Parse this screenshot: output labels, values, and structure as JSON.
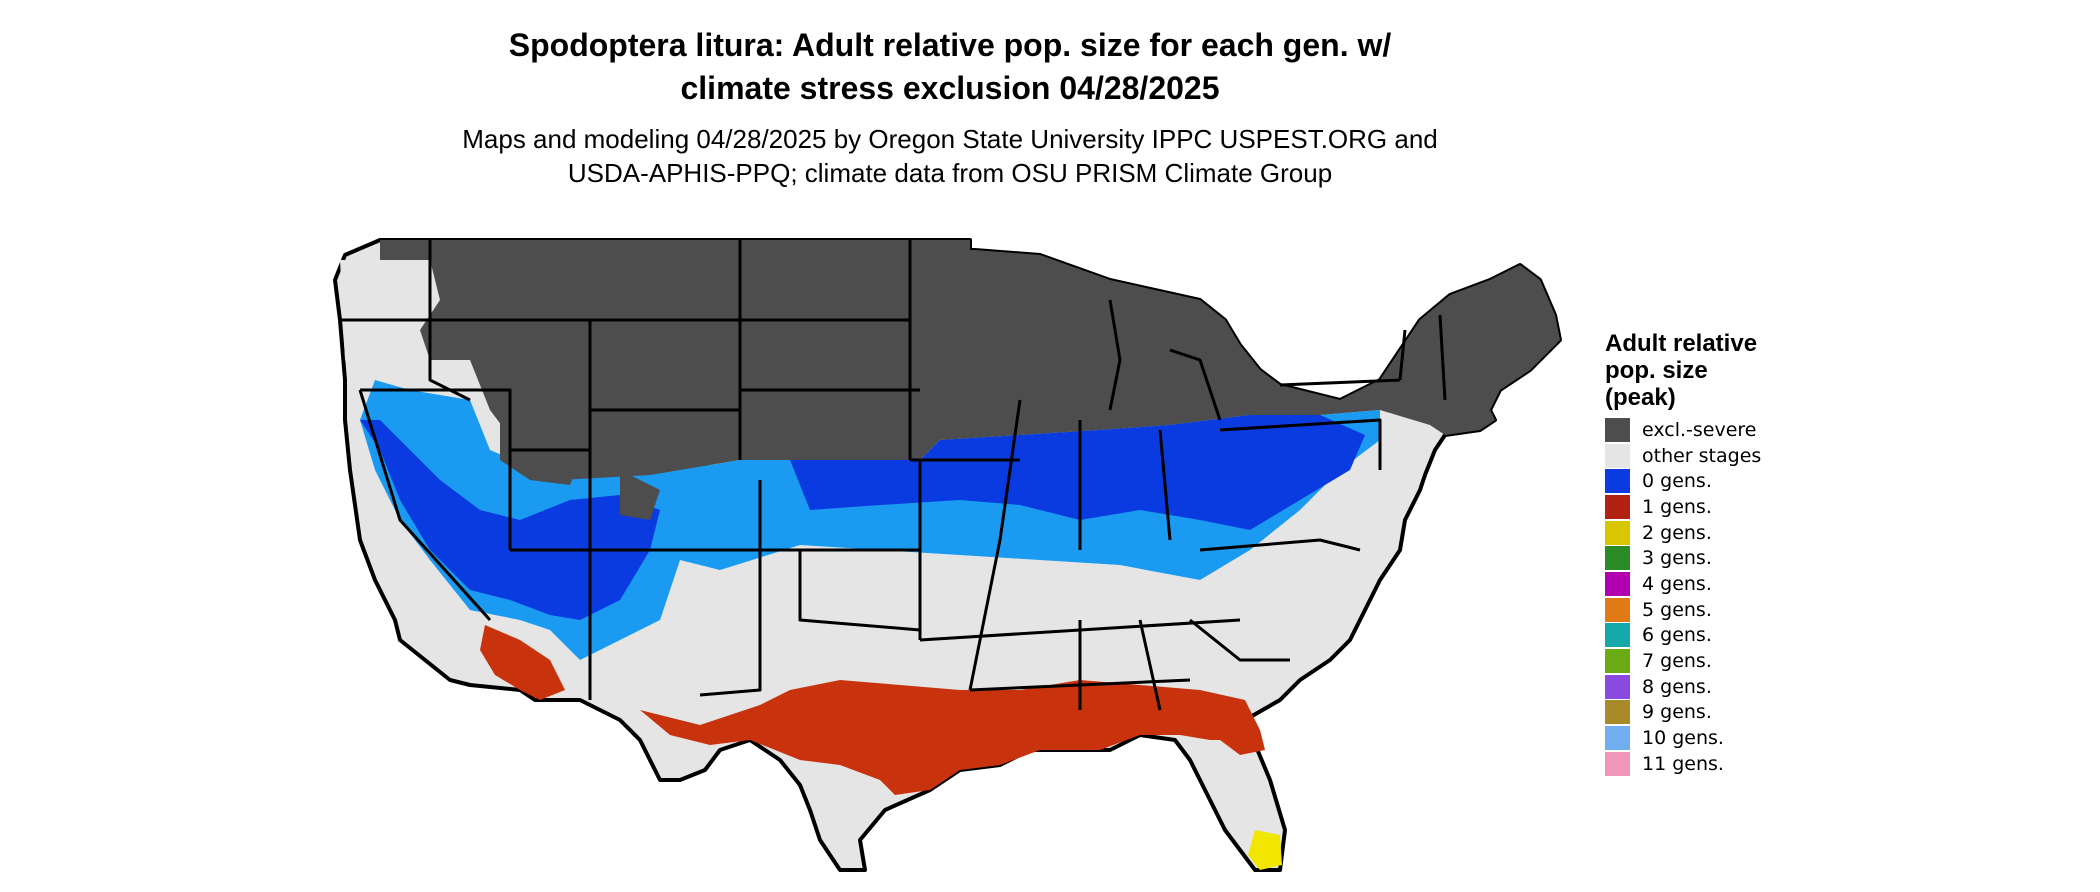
{
  "title": {
    "line1": "Spodoptera litura: Adult relative pop. size for each gen. w/",
    "line2": "climate stress exclusion 04/28/2025"
  },
  "subtitle": {
    "line1": "Maps and modeling 04/28/2025 by Oregon State University IPPC USPEST.ORG and",
    "line2": "USDA-APHIS-PPQ; climate data from OSU PRISM Climate Group"
  },
  "legend": {
    "title_lines": [
      "Adult relative",
      "pop. size",
      "(peak)"
    ],
    "items": [
      {
        "label": "excl.-severe",
        "color": "#4d4d4d"
      },
      {
        "label": "other stages",
        "color": "#e5e5e5"
      },
      {
        "label": "0 gens.",
        "color": "#0a3be0"
      },
      {
        "label": "1 gens.",
        "color": "#b22214"
      },
      {
        "label": "2 gens.",
        "color": "#d9c600"
      },
      {
        "label": "3 gens.",
        "color": "#2a8a25"
      },
      {
        "label": "4 gens.",
        "color": "#b000b0"
      },
      {
        "label": "5 gens.",
        "color": "#e07a14"
      },
      {
        "label": "6 gens.",
        "color": "#14a8a8"
      },
      {
        "label": "7 gens.",
        "color": "#6aaa14"
      },
      {
        "label": "8 gens.",
        "color": "#8a4ae0"
      },
      {
        "label": "9 gens.",
        "color": "#a88a2a"
      },
      {
        "label": "10 gens.",
        "color": "#70aef0"
      },
      {
        "label": "11 gens.",
        "color": "#f096b8"
      }
    ]
  },
  "map_colors": {
    "background_land": "#e5e5e5",
    "excluded": "#4d4d4d",
    "zero_gen_dark": "#0a3be0",
    "zero_gen_light": "#1a9af0",
    "one_gen": "#c8330e",
    "two_gen": "#f0e600",
    "border": "#000000"
  }
}
